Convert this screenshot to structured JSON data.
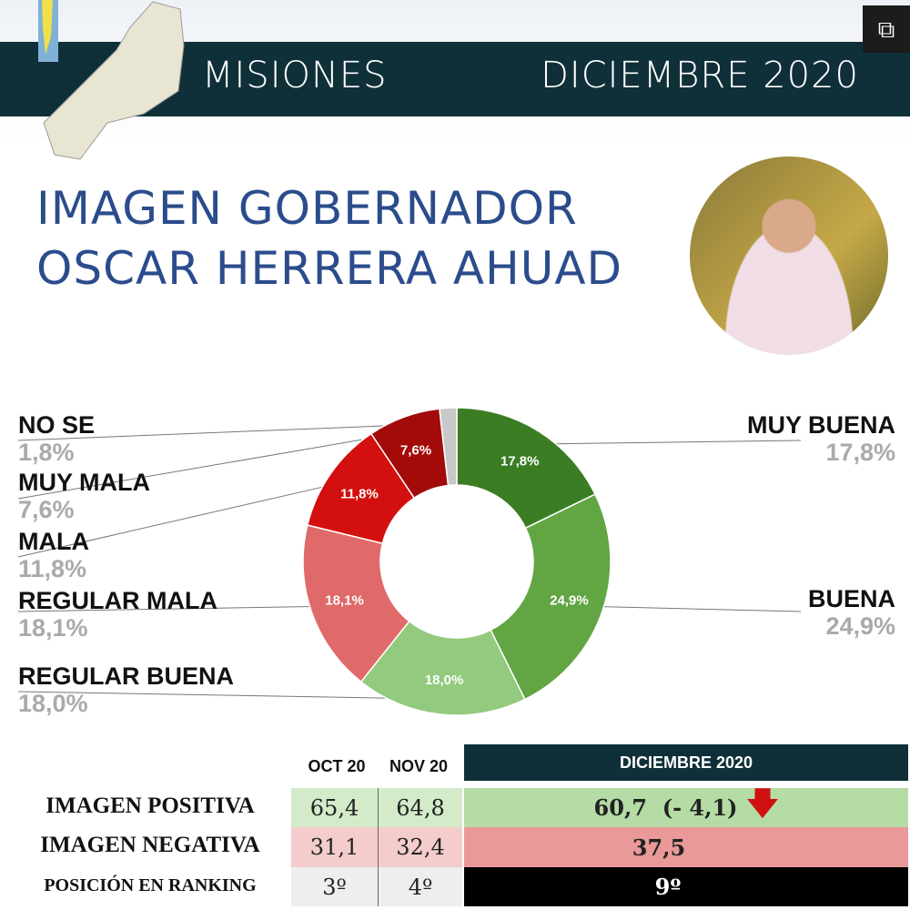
{
  "header": {
    "region": "MISIONES",
    "period": "DICIEMBRE 2020"
  },
  "title": {
    "line1": "IMAGEN GOBERNADOR",
    "line2": "OSCAR HERRERA AHUAD"
  },
  "chart_data": {
    "type": "pie",
    "title": "IMAGEN GOBERNADOR OSCAR HERRERA AHUAD",
    "categories": [
      "MUY BUENA",
      "BUENA",
      "REGULAR BUENA",
      "REGULAR MALA",
      "MALA",
      "MUY MALA",
      "NO SE"
    ],
    "values": [
      17.8,
      24.9,
      18.0,
      18.1,
      11.8,
      7.6,
      1.8
    ],
    "labels": [
      "17,8%",
      "24,9%",
      "18,0%",
      "18,1%",
      "11,8%",
      "7,6%",
      "1,8%"
    ],
    "colors": [
      "#3b7d23",
      "#62a543",
      "#93ca7d",
      "#e06a6a",
      "#d40f0f",
      "#a30a0a",
      "#c8c8c8"
    ]
  },
  "table": {
    "headers": [
      "OCT 20",
      "NOV 20",
      "DICIEMBRE 2020"
    ],
    "rows": [
      {
        "label": "IMAGEN POSITIVA",
        "oct": "65,4",
        "nov": "64,8",
        "dic": "60,7  (- 4,1)"
      },
      {
        "label": "IMAGEN NEGATIVA",
        "oct": "31,1",
        "nov": "32,4",
        "dic": "37,5"
      },
      {
        "label": "POSICIÓN EN RANKING",
        "oct": "3º",
        "nov": "4º",
        "dic": "9º"
      }
    ]
  }
}
